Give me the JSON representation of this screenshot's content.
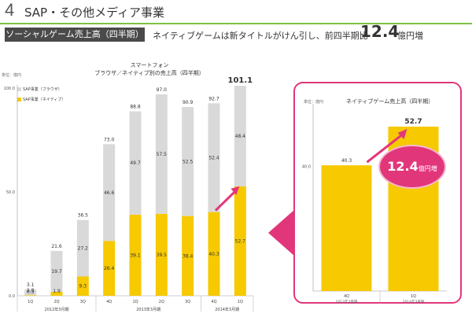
{
  "header": {
    "number": "4",
    "title": "SAP・その他メディア事業"
  },
  "subheader": {
    "label": "ソーシャルゲーム売上高（四半期）",
    "text": "ネイティブゲームは新タイトルがけん引し、前四半期比",
    "big_value": "12.4",
    "unit": "億円増"
  },
  "colors": {
    "browser": "#d9d9d9",
    "native": "#f6c900",
    "accent": "#e2367b",
    "header_rule": "#7cc242"
  },
  "chart_data": [
    {
      "type": "bar",
      "stacked": true,
      "title_line1": "スマートフォン",
      "title_line2": "ブラウザ／ネイティブ別の売上高（四半期）",
      "unit_label": "単位：億円",
      "ylim": [
        0,
        100
      ],
      "yticks": [
        "0.0",
        "50.0",
        "100.0"
      ],
      "legend_position": "top-left",
      "categories": [
        "1Q",
        "2Q",
        "3Q",
        "4Q",
        "1Q",
        "2Q",
        "3Q",
        "4Q",
        "1Q"
      ],
      "year_groups": [
        {
          "label": "2012年3月期",
          "count": 3
        },
        {
          "label": "2013年3月期",
          "count": 4
        },
        {
          "label": "2014年3月期",
          "count": 2
        }
      ],
      "series": [
        {
          "name": "SAP事業（ネイティブ）",
          "values": [
            0.3,
            1.9,
            9.3,
            26.4,
            39.1,
            39.5,
            38.4,
            40.3,
            52.7
          ]
        },
        {
          "name": "SAP事業（ブラウザ）",
          "values": [
            2.8,
            19.7,
            27.2,
            46.6,
            49.7,
            57.5,
            52.5,
            52.4,
            48.4
          ]
        }
      ],
      "totals": [
        3.1,
        21.6,
        36.5,
        73.0,
        88.8,
        97.0,
        90.9,
        92.7,
        101.1
      ],
      "total_labels": [
        "3.1",
        "21.6",
        "36.5",
        "73.0",
        "88.8",
        "97.0",
        "90.9",
        "92.7",
        "101.1"
      ],
      "native_labels": [
        "0.3",
        "1.9",
        "9.3",
        "26.4",
        "39.1",
        "39.5",
        "38.4",
        "40.3",
        "52.7"
      ],
      "browser_labels": [
        "2.8",
        "19.7",
        "27.2",
        "46.6",
        "49.7",
        "57.5",
        "52.5",
        "52.4",
        "48.4"
      ]
    },
    {
      "type": "bar",
      "title": "ネイティブゲーム売上高（四半期）",
      "unit_label": "単位：億円",
      "ylim": [
        0,
        60
      ],
      "yticks": [
        "40.0"
      ],
      "categories": [
        "4Q",
        "1Q"
      ],
      "year_labels": [
        "2013年3月期",
        "2014年3月期"
      ],
      "values": [
        40.3,
        52.7
      ],
      "value_labels": [
        "40.3",
        "52.7"
      ],
      "callout_value": "12.4",
      "callout_unit": "億円増"
    }
  ]
}
